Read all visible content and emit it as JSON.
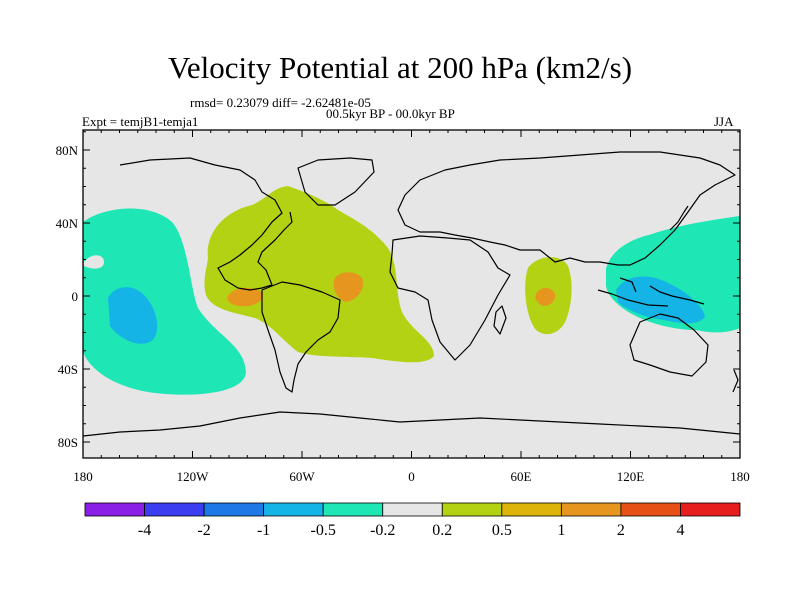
{
  "title": "Velocity Potential at 200 hPa (km2/s)",
  "rmsd_line": "rmsd= 0.23079 diff= -2.62481e-05",
  "period_line": "00.5kyr BP - 00.0kyr BP",
  "experiment": "Expt = temjB1-temja1",
  "season": "JJA",
  "lat_labels": [
    "80N",
    "40N",
    "0",
    "40S",
    "80S"
  ],
  "lon_labels": [
    "180",
    "120W",
    "60W",
    "0",
    "60E",
    "120E",
    "180"
  ],
  "colorbar": {
    "colors": [
      "#8a1fe6",
      "#3c3cf0",
      "#1e78e6",
      "#14b4e6",
      "#1ee6b4",
      "#e6e6e6",
      "#b4d214",
      "#dcb40a",
      "#e6961e",
      "#e65014",
      "#e61e1e"
    ],
    "tick_labels": [
      "-4",
      "-2",
      "-1",
      "-0.5",
      "-0.2",
      "0.2",
      "0.5",
      "1",
      "2",
      "4"
    ]
  },
  "field_colors": {
    "background": "#e6e6e6",
    "weak_negative": "#1ee6b4",
    "moderate_negative": "#14b4e6",
    "weak_positive": "#b4d214",
    "moderate_positive": "#e6961e"
  }
}
